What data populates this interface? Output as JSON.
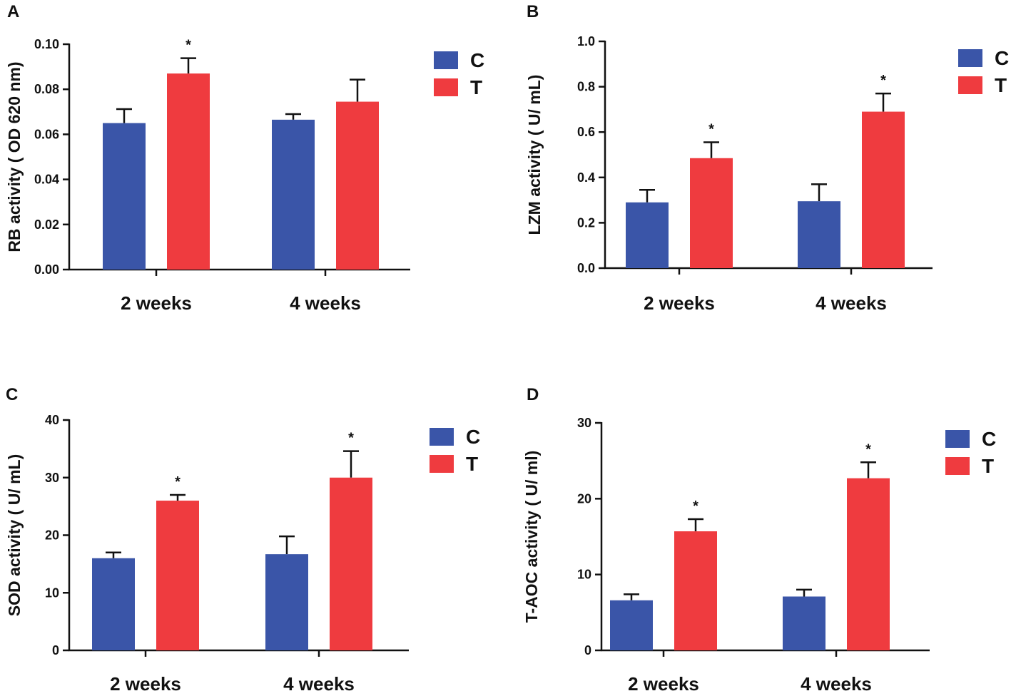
{
  "colors": {
    "C": "#3a55a8",
    "T": "#ef3b3f"
  },
  "chart_data": [
    {
      "panel": "A",
      "type": "bar",
      "categories": [
        "2 weeks",
        "4 weeks"
      ],
      "ylabel": "RB activity ( OD 620 nm)",
      "ylim": [
        0,
        0.1
      ],
      "yticks": [
        "0.00",
        "0.02",
        "0.04",
        "0.06",
        "0.08",
        "0.10"
      ],
      "legend": [
        "C",
        "T"
      ],
      "series": [
        {
          "name": "C",
          "values": [
            0.065,
            0.0665
          ],
          "errors": [
            0.0062,
            0.0025
          ],
          "sig": [
            "",
            ""
          ]
        },
        {
          "name": "T",
          "values": [
            0.087,
            0.0745
          ],
          "errors": [
            0.0068,
            0.0098
          ],
          "sig": [
            "*",
            ""
          ]
        }
      ]
    },
    {
      "panel": "B",
      "type": "bar",
      "categories": [
        "2 weeks",
        "4 weeks"
      ],
      "ylabel": "LZM activity ( U/ mL)",
      "ylim": [
        0,
        1.0
      ],
      "yticks": [
        "0.0",
        "0.2",
        "0.4",
        "0.6",
        "0.8",
        "1.0"
      ],
      "legend": [
        "C",
        "T"
      ],
      "series": [
        {
          "name": "C",
          "values": [
            0.29,
            0.295
          ],
          "errors": [
            0.055,
            0.075
          ],
          "sig": [
            "",
            ""
          ]
        },
        {
          "name": "T",
          "values": [
            0.485,
            0.69
          ],
          "errors": [
            0.07,
            0.08
          ],
          "sig": [
            "*",
            "*"
          ]
        }
      ]
    },
    {
      "panel": "C",
      "type": "bar",
      "categories": [
        "2 weeks",
        "4 weeks"
      ],
      "ylabel": "SOD activity ( U/ mL)",
      "ylim": [
        0,
        40
      ],
      "yticks": [
        "0",
        "10",
        "20",
        "30",
        "40"
      ],
      "legend": [
        "C",
        "T"
      ],
      "series": [
        {
          "name": "C",
          "values": [
            16.0,
            16.7
          ],
          "errors": [
            1.0,
            3.1
          ],
          "sig": [
            "",
            ""
          ]
        },
        {
          "name": "T",
          "values": [
            26.0,
            30.0
          ],
          "errors": [
            1.0,
            4.6
          ],
          "sig": [
            "*",
            "*"
          ]
        }
      ]
    },
    {
      "panel": "D",
      "type": "bar",
      "categories": [
        "2 weeks",
        "4 weeks"
      ],
      "ylabel": "T-AOC activity ( U/ ml)",
      "ylim": [
        0,
        30
      ],
      "yticks": [
        "0",
        "10",
        "20",
        "30"
      ],
      "legend": [
        "C",
        "T"
      ],
      "series": [
        {
          "name": "C",
          "values": [
            6.6,
            7.1
          ],
          "errors": [
            0.8,
            0.9
          ],
          "sig": [
            "",
            ""
          ]
        },
        {
          "name": "T",
          "values": [
            15.7,
            22.7
          ],
          "errors": [
            1.6,
            2.1
          ],
          "sig": [
            "*",
            "*"
          ]
        }
      ]
    }
  ]
}
